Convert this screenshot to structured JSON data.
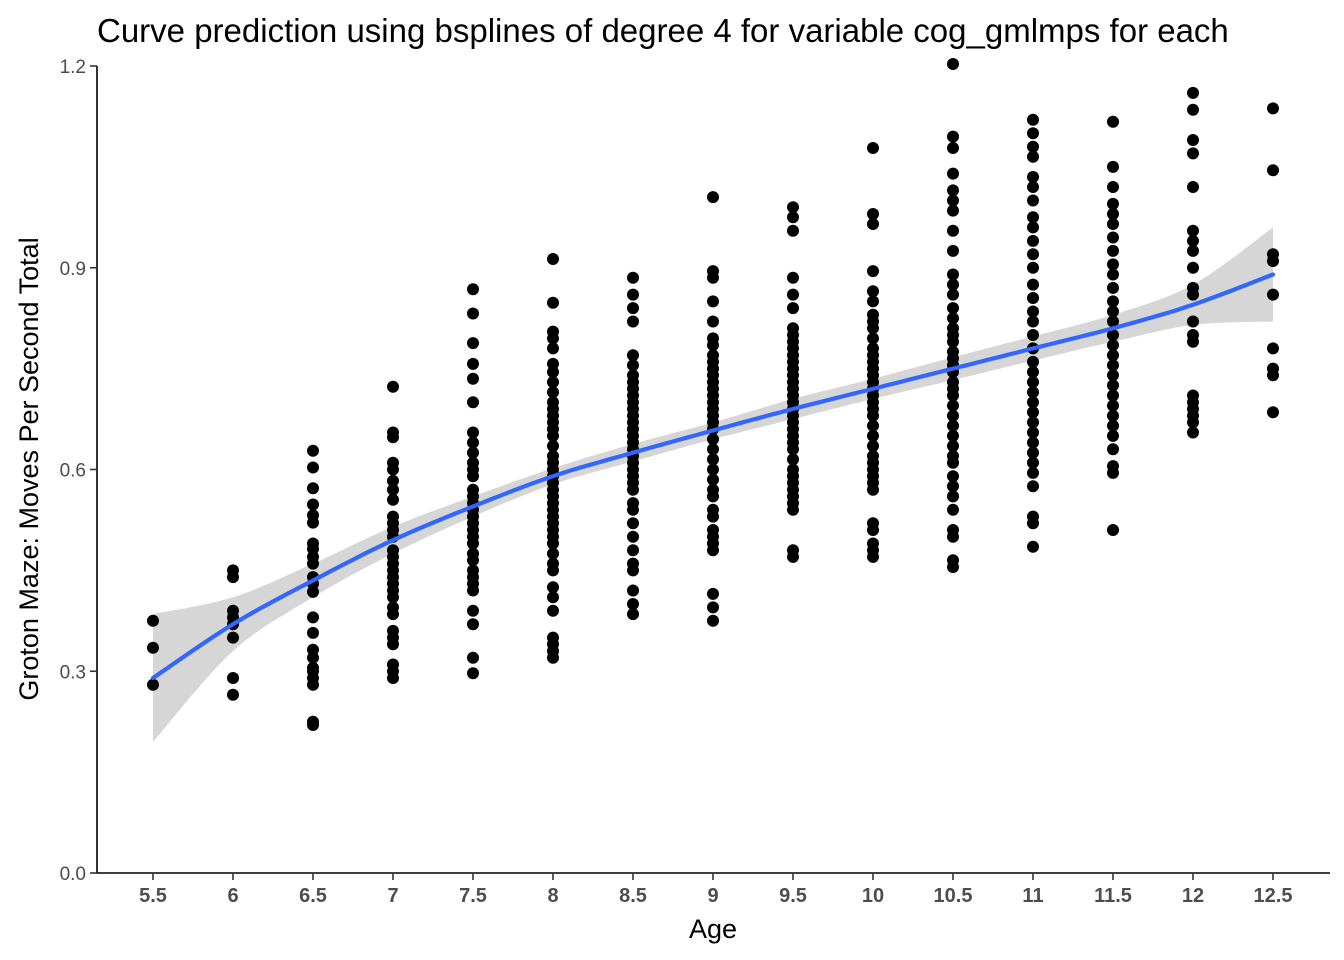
{
  "chart_data": {
    "type": "scatter",
    "title": "Curve prediction using bsplines of degree 4  for variable cog_gmlmps for each",
    "xlabel": "Age",
    "ylabel": "Groton Maze: Moves Per Second Total",
    "xlim": [
      5.35,
      12.7
    ],
    "ylim": [
      0,
      1.2
    ],
    "x_ticks": [
      5.5,
      6,
      6.5,
      7,
      7.5,
      8,
      8.5,
      9,
      9.5,
      10,
      10.5,
      11,
      11.5,
      12,
      12.5
    ],
    "x_tick_labels": [
      "5.5",
      "6",
      "6.5",
      "7",
      "7.5",
      "8",
      "8.5",
      "9",
      "9.5",
      "10",
      "10.5",
      "11",
      "11.5",
      "12",
      "12.5"
    ],
    "y_ticks": [
      0,
      0.3,
      0.6,
      0.9,
      1.2
    ],
    "y_tick_labels": [
      "0.0",
      "0.3",
      "0.6",
      "0.9",
      "1.2"
    ],
    "grid": false,
    "legend": "none",
    "colors": {
      "points": "#000000",
      "fit_line": "#3366ff",
      "confidence_band": "#999999"
    },
    "points_by_age": [
      {
        "x": 5.5,
        "y": [
          0.375,
          0.335,
          0.28
        ]
      },
      {
        "x": 6,
        "y": [
          0.45,
          0.44,
          0.39,
          0.38,
          0.37,
          0.35,
          0.29,
          0.265
        ]
      },
      {
        "x": 6.5,
        "y": [
          0.628,
          0.603,
          0.572,
          0.548,
          0.532,
          0.521,
          0.49,
          0.482,
          0.47,
          0.46,
          0.44,
          0.43,
          0.418,
          0.38,
          0.357,
          0.332,
          0.32,
          0.305,
          0.3,
          0.29,
          0.28,
          0.225,
          0.22
        ]
      },
      {
        "x": 7,
        "y": [
          0.723,
          0.655,
          0.648,
          0.61,
          0.6,
          0.583,
          0.57,
          0.555,
          0.53,
          0.52,
          0.51,
          0.5,
          0.48,
          0.47,
          0.46,
          0.45,
          0.44,
          0.43,
          0.42,
          0.41,
          0.395,
          0.385,
          0.36,
          0.35,
          0.34,
          0.31,
          0.3,
          0.29
        ]
      },
      {
        "x": 7.5,
        "y": [
          0.868,
          0.832,
          0.788,
          0.757,
          0.735,
          0.7,
          0.655,
          0.64,
          0.625,
          0.61,
          0.6,
          0.59,
          0.57,
          0.56,
          0.55,
          0.54,
          0.53,
          0.52,
          0.51,
          0.5,
          0.49,
          0.475,
          0.465,
          0.45,
          0.44,
          0.43,
          0.42,
          0.39,
          0.37,
          0.32,
          0.297
        ]
      },
      {
        "x": 8,
        "y": [
          0.913,
          0.848,
          0.805,
          0.795,
          0.78,
          0.757,
          0.745,
          0.73,
          0.715,
          0.7,
          0.69,
          0.68,
          0.67,
          0.66,
          0.65,
          0.635,
          0.62,
          0.61,
          0.6,
          0.59,
          0.58,
          0.57,
          0.56,
          0.55,
          0.54,
          0.53,
          0.52,
          0.51,
          0.5,
          0.49,
          0.475,
          0.46,
          0.45,
          0.425,
          0.41,
          0.39,
          0.35,
          0.34,
          0.33,
          0.32
        ]
      },
      {
        "x": 8.5,
        "y": [
          0.885,
          0.86,
          0.84,
          0.82,
          0.77,
          0.755,
          0.74,
          0.73,
          0.72,
          0.71,
          0.7,
          0.69,
          0.68,
          0.67,
          0.66,
          0.65,
          0.64,
          0.63,
          0.62,
          0.61,
          0.6,
          0.59,
          0.58,
          0.57,
          0.55,
          0.54,
          0.52,
          0.5,
          0.48,
          0.46,
          0.45,
          0.42,
          0.4,
          0.385
        ]
      },
      {
        "x": 9,
        "y": [
          1.005,
          0.895,
          0.885,
          0.85,
          0.82,
          0.795,
          0.785,
          0.77,
          0.76,
          0.75,
          0.74,
          0.73,
          0.72,
          0.71,
          0.7,
          0.69,
          0.68,
          0.67,
          0.66,
          0.645,
          0.63,
          0.615,
          0.6,
          0.585,
          0.57,
          0.56,
          0.54,
          0.53,
          0.51,
          0.5,
          0.49,
          0.48,
          0.415,
          0.395,
          0.375
        ]
      },
      {
        "x": 9.5,
        "y": [
          0.99,
          0.975,
          0.955,
          0.885,
          0.86,
          0.84,
          0.81,
          0.8,
          0.79,
          0.78,
          0.77,
          0.76,
          0.75,
          0.74,
          0.73,
          0.72,
          0.71,
          0.7,
          0.69,
          0.68,
          0.67,
          0.66,
          0.65,
          0.64,
          0.63,
          0.615,
          0.6,
          0.59,
          0.58,
          0.57,
          0.56,
          0.55,
          0.54,
          0.48,
          0.47
        ]
      },
      {
        "x": 10,
        "y": [
          1.078,
          0.98,
          0.965,
          0.895,
          0.865,
          0.85,
          0.83,
          0.82,
          0.81,
          0.795,
          0.78,
          0.77,
          0.76,
          0.75,
          0.74,
          0.73,
          0.72,
          0.71,
          0.7,
          0.69,
          0.68,
          0.665,
          0.65,
          0.635,
          0.62,
          0.61,
          0.6,
          0.59,
          0.58,
          0.57,
          0.52,
          0.51,
          0.49,
          0.48,
          0.47
        ]
      },
      {
        "x": 10.5,
        "y": [
          1.203,
          1.095,
          1.078,
          1.04,
          1.015,
          1.0,
          0.985,
          0.955,
          0.925,
          0.89,
          0.875,
          0.86,
          0.84,
          0.825,
          0.81,
          0.8,
          0.79,
          0.775,
          0.765,
          0.755,
          0.745,
          0.73,
          0.72,
          0.71,
          0.695,
          0.68,
          0.665,
          0.65,
          0.635,
          0.62,
          0.61,
          0.59,
          0.575,
          0.56,
          0.54,
          0.51,
          0.5,
          0.465,
          0.455
        ]
      },
      {
        "x": 11,
        "y": [
          1.12,
          1.1,
          1.08,
          1.065,
          1.035,
          1.02,
          1.0,
          0.975,
          0.96,
          0.94,
          0.92,
          0.9,
          0.875,
          0.855,
          0.835,
          0.82,
          0.8,
          0.78,
          0.76,
          0.745,
          0.73,
          0.715,
          0.7,
          0.685,
          0.67,
          0.655,
          0.64,
          0.625,
          0.61,
          0.595,
          0.575,
          0.53,
          0.52,
          0.485
        ]
      },
      {
        "x": 11.5,
        "y": [
          1.117,
          1.05,
          1.02,
          0.995,
          0.98,
          0.965,
          0.945,
          0.925,
          0.905,
          0.89,
          0.87,
          0.85,
          0.835,
          0.82,
          0.8,
          0.785,
          0.77,
          0.755,
          0.74,
          0.725,
          0.71,
          0.695,
          0.68,
          0.665,
          0.65,
          0.63,
          0.605,
          0.595,
          0.51
        ]
      },
      {
        "x": 12,
        "y": [
          1.16,
          1.135,
          1.09,
          1.07,
          1.02,
          0.955,
          0.94,
          0.925,
          0.9,
          0.87,
          0.86,
          0.82,
          0.8,
          0.79,
          0.71,
          0.7,
          0.69,
          0.68,
          0.67,
          0.655
        ]
      },
      {
        "x": 12.5,
        "y": [
          1.137,
          1.045,
          0.92,
          0.91,
          0.86,
          0.78,
          0.75,
          0.74,
          0.685
        ]
      }
    ],
    "fit_line": {
      "x": [
        5.5,
        6,
        6.5,
        7,
        7.5,
        8,
        8.5,
        9,
        9.5,
        10,
        10.5,
        11,
        11.5,
        12,
        12.5
      ],
      "y": [
        0.29,
        0.37,
        0.435,
        0.495,
        0.545,
        0.59,
        0.625,
        0.658,
        0.69,
        0.72,
        0.75,
        0.78,
        0.81,
        0.845,
        0.89
      ],
      "ci_lower": [
        0.195,
        0.33,
        0.41,
        0.475,
        0.53,
        0.578,
        0.612,
        0.645,
        0.675,
        0.705,
        0.733,
        0.762,
        0.79,
        0.815,
        0.82
      ],
      "ci_upper": [
        0.385,
        0.41,
        0.46,
        0.515,
        0.56,
        0.602,
        0.638,
        0.67,
        0.705,
        0.735,
        0.767,
        0.798,
        0.83,
        0.875,
        0.96
      ]
    }
  }
}
